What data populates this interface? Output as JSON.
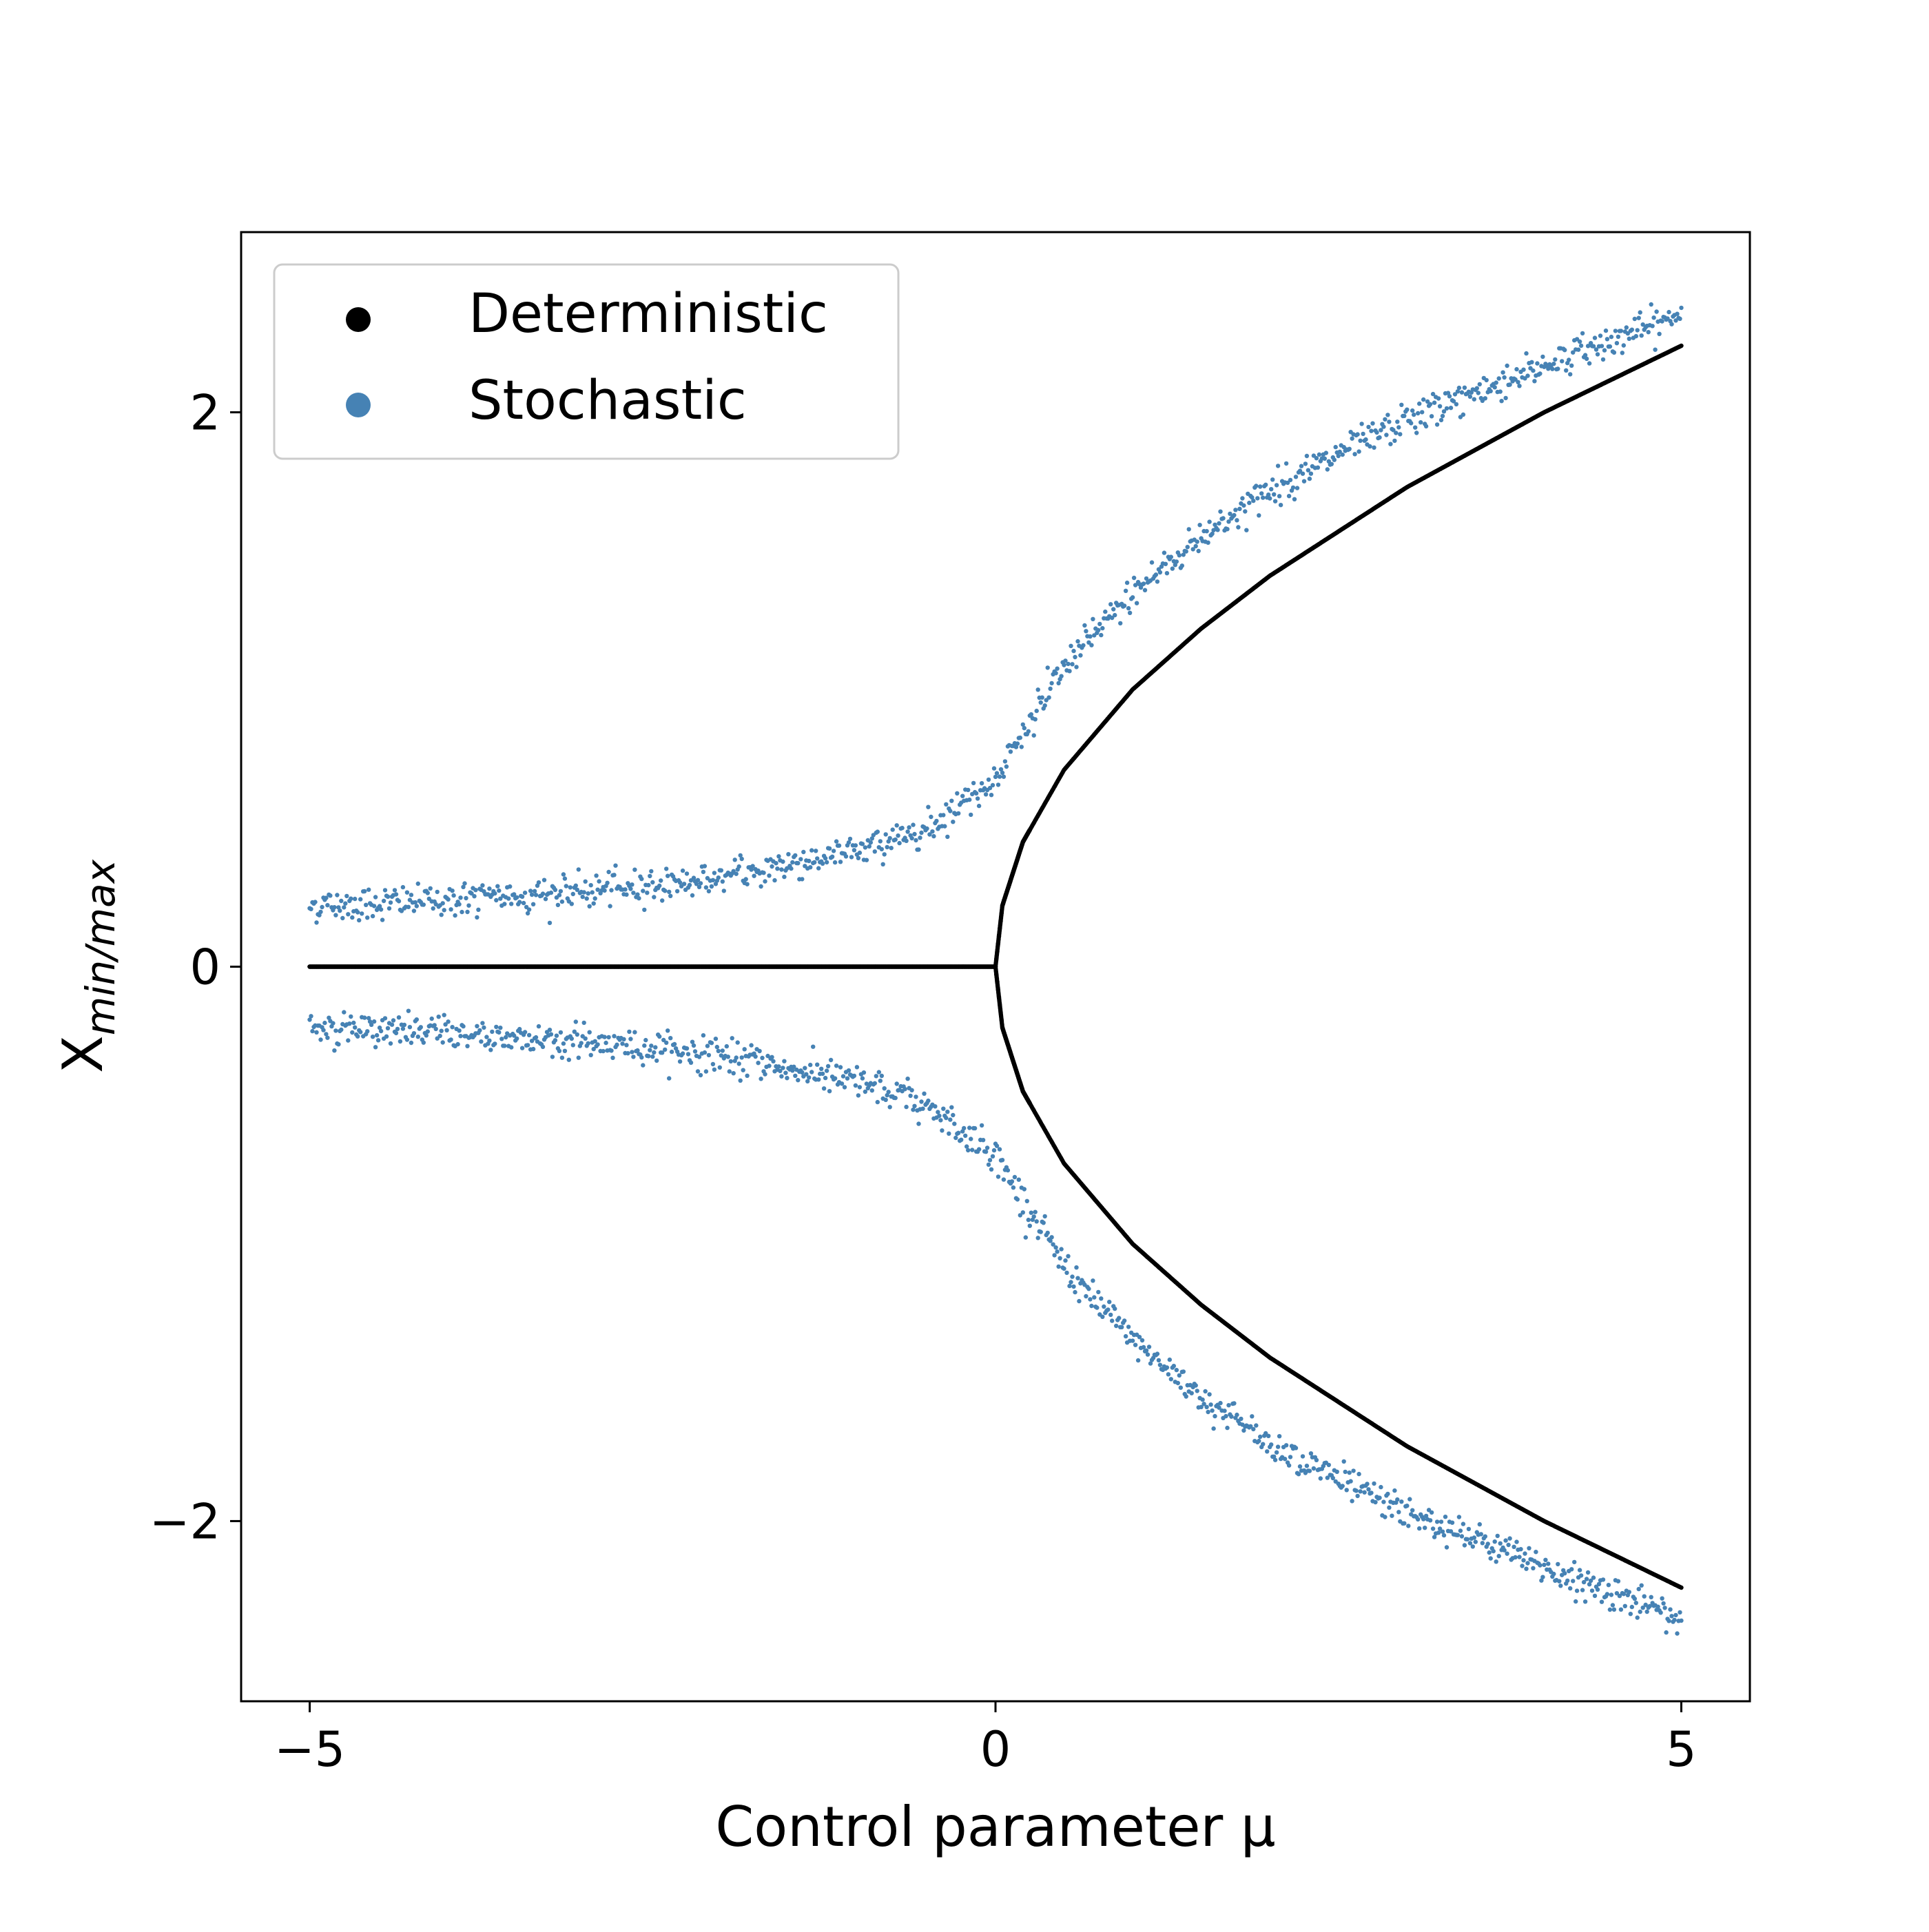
{
  "chart_data": {
    "type": "scatter",
    "title": "",
    "xlabel": "Control parameter μ",
    "ylabel": {
      "main": "X",
      "subscript": "min/max"
    },
    "xlim": [
      -5.5,
      5.5
    ],
    "ylim": [
      -2.65,
      2.65
    ],
    "xticks": [
      {
        "value": -5,
        "label": "−5"
      },
      {
        "value": 0,
        "label": "0"
      },
      {
        "value": 5,
        "label": "5"
      }
    ],
    "yticks": [
      {
        "value": -2,
        "label": "−2"
      },
      {
        "value": 0,
        "label": "0"
      },
      {
        "value": 2,
        "label": "2"
      }
    ],
    "grid": false,
    "legend": {
      "position": "top-left",
      "entries": [
        {
          "label": "Deterministic",
          "color": "#000000"
        },
        {
          "label": "Stochastic",
          "color": "#4682b4"
        }
      ]
    },
    "series": [
      {
        "name": "Deterministic",
        "color": "#000000",
        "description_points": {
          "mu": [
            -5.0,
            -4.0,
            -3.0,
            -2.0,
            -1.0,
            0.0,
            0.05,
            0.2,
            0.5,
            1.0,
            1.5,
            2.0,
            3.0,
            4.0,
            5.0
          ],
          "x_max": [
            0.0,
            0.0,
            0.0,
            0.0,
            0.0,
            0.0,
            0.22,
            0.45,
            0.71,
            1.0,
            1.22,
            1.41,
            1.73,
            2.0,
            2.24
          ],
          "x_min": [
            0.0,
            0.0,
            0.0,
            0.0,
            0.0,
            0.0,
            -0.22,
            -0.45,
            -0.71,
            -1.0,
            -1.22,
            -1.41,
            -1.73,
            -2.0,
            -2.24
          ]
        }
      },
      {
        "name": "Stochastic",
        "color": "#4682b4",
        "description_points": {
          "mu": [
            -5.0,
            -4.0,
            -3.0,
            -2.0,
            -1.0,
            -0.5,
            0.0,
            0.5,
            1.0,
            1.5,
            2.0,
            3.0,
            4.0,
            5.0
          ],
          "x_max": [
            0.22,
            0.24,
            0.27,
            0.32,
            0.42,
            0.5,
            0.68,
            1.08,
            1.35,
            1.55,
            1.72,
            1.97,
            2.17,
            2.35
          ],
          "x_min": [
            -0.22,
            -0.24,
            -0.27,
            -0.32,
            -0.42,
            -0.5,
            -0.68,
            -1.08,
            -1.35,
            -1.55,
            -1.72,
            -1.97,
            -2.17,
            -2.35
          ],
          "noise_sd": 0.03
        }
      }
    ]
  }
}
